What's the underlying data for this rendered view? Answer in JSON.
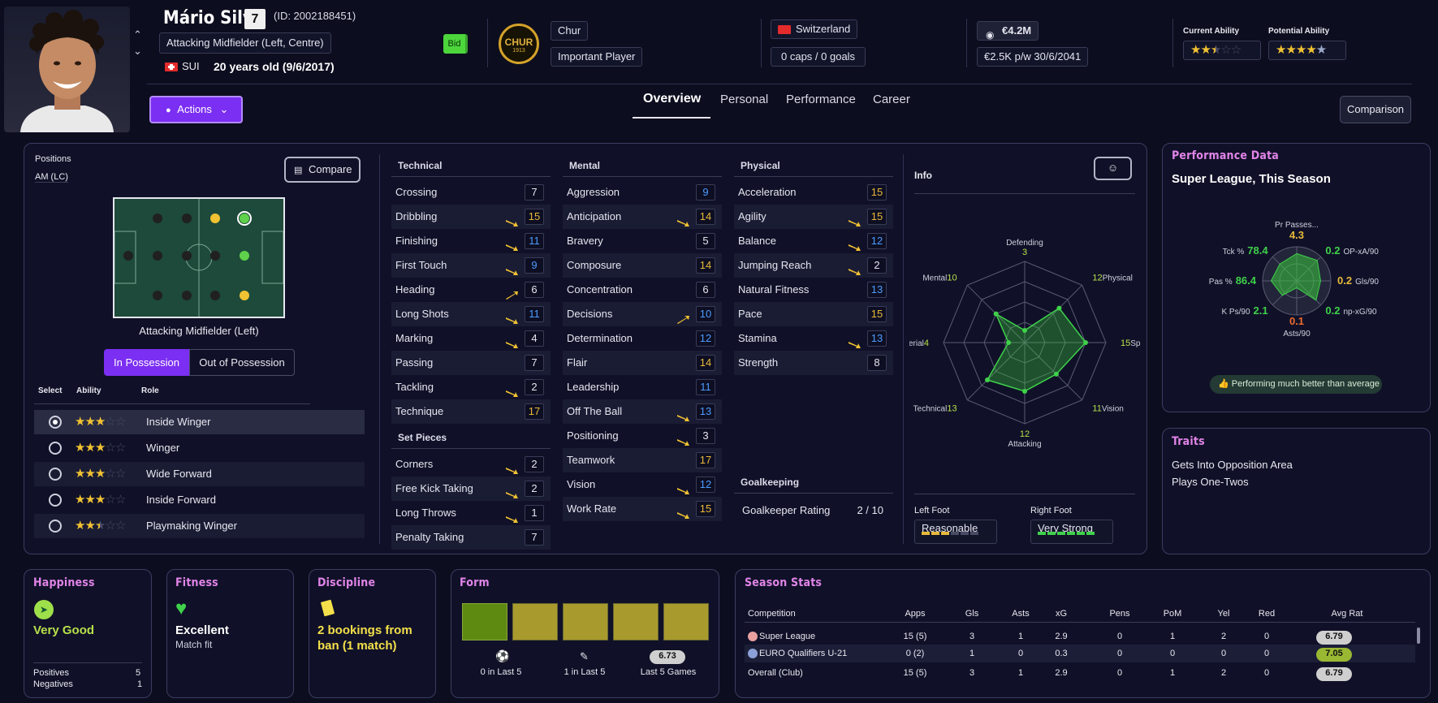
{
  "player": {
    "name": "Mário Silva",
    "number": "7",
    "id": "(ID: 2002188451)",
    "position": "Attacking Midfielder (Left, Centre)",
    "nation_code": "SUI",
    "age": "20 years old (9/6/2017)",
    "bid_label": "Bid"
  },
  "club": {
    "badge_text": "CHUR",
    "badge_year": "1913",
    "name": "Chur",
    "status": "Important Player"
  },
  "nation": {
    "name": "Switzerland",
    "caps": "0 caps / 0 goals"
  },
  "contract": {
    "value": "€4.2M",
    "wage": "€2.5K p/w 30/6/2041"
  },
  "ability": {
    "current_label": "Current Ability",
    "potential_label": "Potential Ability",
    "current_stars": 2.5,
    "potential_stars": 4.5
  },
  "actions_label": "Actions",
  "tabs": [
    {
      "label": "Overview",
      "active": true
    },
    {
      "label": "Personal"
    },
    {
      "label": "Performance"
    },
    {
      "label": "Career"
    }
  ],
  "comparison_label": "Comparison",
  "positions": {
    "label": "Positions",
    "short": "AM (LC)",
    "compare_label": "Compare",
    "pitch_caption": "Attacking Midfielder (Left)",
    "in_possession": "In Possession",
    "out_possession": "Out of Possession"
  },
  "roles": {
    "headers": {
      "select": "Select",
      "ability": "Ability",
      "role": "Role"
    },
    "items": [
      {
        "name": "Inside Winger",
        "stars": 3,
        "selected": true
      },
      {
        "name": "Winger",
        "stars": 3
      },
      {
        "name": "Wide Forward",
        "stars": 3
      },
      {
        "name": "Inside Forward",
        "stars": 3
      },
      {
        "name": "Playmaking Winger",
        "stars": 2.5
      }
    ]
  },
  "technical": {
    "title": "Technical",
    "items": [
      {
        "name": "Crossing",
        "value": "7",
        "color": "white"
      },
      {
        "name": "Dribbling",
        "value": "15",
        "color": "gold",
        "trend": "up"
      },
      {
        "name": "Finishing",
        "value": "11",
        "color": "blue",
        "trend": "up"
      },
      {
        "name": "First Touch",
        "value": "9",
        "color": "blue",
        "trend": "up"
      },
      {
        "name": "Heading",
        "value": "6",
        "color": "white",
        "trend": "upstrong"
      },
      {
        "name": "Long Shots",
        "value": "11",
        "color": "blue",
        "trend": "up"
      },
      {
        "name": "Marking",
        "value": "4",
        "color": "white",
        "trend": "up"
      },
      {
        "name": "Passing",
        "value": "7",
        "color": "white"
      },
      {
        "name": "Tackling",
        "value": "2",
        "color": "white",
        "trend": "up"
      },
      {
        "name": "Technique",
        "value": "17",
        "color": "gold"
      }
    ]
  },
  "setpieces": {
    "title": "Set Pieces",
    "items": [
      {
        "name": "Corners",
        "value": "2",
        "color": "white",
        "trend": "up"
      },
      {
        "name": "Free Kick Taking",
        "value": "2",
        "color": "white",
        "trend": "up"
      },
      {
        "name": "Long Throws",
        "value": "1",
        "color": "white",
        "trend": "up"
      },
      {
        "name": "Penalty Taking",
        "value": "7",
        "color": "white"
      }
    ]
  },
  "mental": {
    "title": "Mental",
    "items": [
      {
        "name": "Aggression",
        "value": "9",
        "color": "blue"
      },
      {
        "name": "Anticipation",
        "value": "14",
        "color": "gold",
        "trend": "up"
      },
      {
        "name": "Bravery",
        "value": "5",
        "color": "white"
      },
      {
        "name": "Composure",
        "value": "14",
        "color": "gold"
      },
      {
        "name": "Concentration",
        "value": "6",
        "color": "white"
      },
      {
        "name": "Decisions",
        "value": "10",
        "color": "blue",
        "trend": "upstrong"
      },
      {
        "name": "Determination",
        "value": "12",
        "color": "blue"
      },
      {
        "name": "Flair",
        "value": "14",
        "color": "gold"
      },
      {
        "name": "Leadership",
        "value": "11",
        "color": "blue"
      },
      {
        "name": "Off The Ball",
        "value": "13",
        "color": "blue",
        "trend": "up"
      },
      {
        "name": "Positioning",
        "value": "3",
        "color": "white",
        "trend": "up"
      },
      {
        "name": "Teamwork",
        "value": "17",
        "color": "gold"
      },
      {
        "name": "Vision",
        "value": "12",
        "color": "blue",
        "trend": "up"
      },
      {
        "name": "Work Rate",
        "value": "15",
        "color": "gold",
        "trend": "up"
      }
    ]
  },
  "physical": {
    "title": "Physical",
    "items": [
      {
        "name": "Acceleration",
        "value": "15",
        "color": "gold"
      },
      {
        "name": "Agility",
        "value": "15",
        "color": "gold",
        "trend": "up"
      },
      {
        "name": "Balance",
        "value": "12",
        "color": "blue",
        "trend": "up"
      },
      {
        "name": "Jumping Reach",
        "value": "2",
        "color": "white",
        "trend": "up"
      },
      {
        "name": "Natural Fitness",
        "value": "13",
        "color": "blue"
      },
      {
        "name": "Pace",
        "value": "15",
        "color": "gold"
      },
      {
        "name": "Stamina",
        "value": "13",
        "color": "blue",
        "trend": "up"
      },
      {
        "name": "Strength",
        "value": "8",
        "color": "white"
      }
    ]
  },
  "goalkeeping": {
    "title": "Goalkeeping",
    "rating_label": "Goalkeeper Rating",
    "rating_value": "2 / 10"
  },
  "info": {
    "title": "Info",
    "radar": [
      {
        "label": "Defending",
        "value": "3"
      },
      {
        "label": "Physical",
        "value": "12"
      },
      {
        "label": "Speed",
        "value": "15"
      },
      {
        "label": "Vision",
        "value": "11"
      },
      {
        "label": "Attacking",
        "value": "12"
      },
      {
        "label": "Technical",
        "value": "13"
      },
      {
        "label": "Aerial",
        "value": "4"
      },
      {
        "label": "Mental",
        "value": "10"
      }
    ],
    "left_foot_label": "Left Foot",
    "left_foot": "Reasonable",
    "left_foot_level": 3,
    "right_foot_label": "Right Foot",
    "right_foot": "Very Strong",
    "right_foot_level": 6
  },
  "performance": {
    "title": "Performance Data",
    "subtitle": "Super League, This Season",
    "badge": "Performing much better than average",
    "metrics": [
      {
        "label": "Pr Passes...",
        "value": "4.3",
        "color": "#e8b93a"
      },
      {
        "label": "OP-xA/90",
        "value": "0.2",
        "color": "#3fd14a"
      },
      {
        "label": "Gls/90",
        "value": "0.2",
        "color": "#e8b93a"
      },
      {
        "label": "np-xG/90",
        "value": "0.2",
        "color": "#3fd14a"
      },
      {
        "label": "Asts/90",
        "value": "0.1",
        "color": "#ef6a2c"
      },
      {
        "label": "K Ps/90",
        "value": "2.1",
        "color": "#3fd14a"
      },
      {
        "label": "Pas %",
        "value": "86.4",
        "color": "#3fd14a"
      },
      {
        "label": "Tck %",
        "value": "78.4",
        "color": "#3fd14a"
      }
    ]
  },
  "traits": {
    "title": "Traits",
    "items": [
      "Gets Into Opposition Area",
      "Plays One-Twos"
    ]
  },
  "happiness": {
    "title": "Happiness",
    "status": "Very Good",
    "positives_label": "Positives",
    "positives": "5",
    "negatives_label": "Negatives",
    "negatives": "1"
  },
  "fitness": {
    "title": "Fitness",
    "status": "Excellent",
    "sub": "Match fit"
  },
  "discipline": {
    "title": "Discipline",
    "status": "2 bookings from ban (1 match)"
  },
  "form": {
    "title": "Form",
    "goals": "0 in Last 5",
    "assists": "1 in Last 5",
    "rating": "6.73",
    "rating_label": "Last 5 Games"
  },
  "season": {
    "title": "Season Stats",
    "headers": [
      "Competition",
      "Apps",
      "Gls",
      "Asts",
      "xG",
      "Pens",
      "PoM",
      "Yel",
      "Red",
      "Avg Rat"
    ],
    "rows": [
      [
        "Super League",
        "15 (5)",
        "3",
        "1",
        "2.9",
        "0",
        "1",
        "2",
        "0",
        "6.79"
      ],
      [
        "EURO Qualifiers U-21",
        "0 (2)",
        "1",
        "0",
        "0.3",
        "0",
        "0",
        "0",
        "0",
        "7.05"
      ]
    ],
    "total": [
      "Overall (Club)",
      "15 (5)",
      "3",
      "1",
      "2.9",
      "0",
      "1",
      "2",
      "0",
      "6.79"
    ]
  },
  "colors": {
    "accent": "#7b2ff2",
    "pink": "#e184e8",
    "gold": "#e8b93a",
    "blue": "#4d9cff",
    "green": "#3fd14a"
  }
}
